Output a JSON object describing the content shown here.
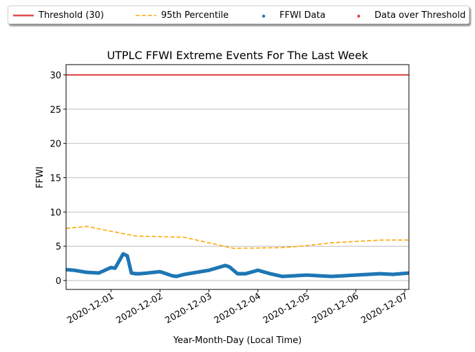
{
  "chart_data": {
    "type": "line",
    "title": "UTPLC FFWI Extreme Events For The Last Week",
    "xlabel": "Year-Month-Day (Local Time)",
    "ylabel": "FFWI",
    "xlim": [
      "2020-11-30T02:00",
      "2020-12-07T02:00"
    ],
    "ylim": [
      -1.3,
      31.5
    ],
    "yticks": [
      0,
      5,
      10,
      15,
      20,
      25,
      30
    ],
    "xticks": [
      "2020-12-01",
      "2020-12-02",
      "2020-12-03",
      "2020-12-04",
      "2020-12-05",
      "2020-12-06",
      "2020-12-07"
    ],
    "grid": "horizontal",
    "legend_position": "top, above plot",
    "legend": [
      "Threshold (30)",
      "95th Percentile",
      "FFWI Data",
      "Data over Threshold"
    ],
    "colors": {
      "threshold": "#e0474c",
      "percentile": "#ffa500",
      "ffwi": "#1f77b4",
      "over": "#e0474c"
    },
    "series": [
      {
        "name": "Threshold (30)",
        "style": "solid-line",
        "x": [
          "2020-11-30T02:00",
          "2020-12-07T02:00"
        ],
        "y": [
          30,
          30
        ]
      },
      {
        "name": "95th Percentile",
        "style": "dashed-line",
        "x": [
          "2020-11-30T02:00",
          "2020-11-30T12:00",
          "2020-12-01T00:00",
          "2020-12-01T12:00",
          "2020-12-02T12:00",
          "2020-12-03T00:00",
          "2020-12-03T12:00",
          "2020-12-04T12:00",
          "2020-12-05T00:00",
          "2020-12-05T12:00",
          "2020-12-06T00:00",
          "2020-12-06T12:00",
          "2020-12-07T02:00"
        ],
        "y": [
          7.6,
          7.9,
          7.2,
          6.5,
          6.3,
          5.5,
          4.7,
          4.8,
          5.1,
          5.5,
          5.7,
          5.9,
          5.9
        ]
      },
      {
        "name": "FFWI Data",
        "style": "scatter",
        "x": [
          "2020-11-30T02:00",
          "2020-11-30T06:00",
          "2020-11-30T12:00",
          "2020-11-30T18:00",
          "2020-12-01T00:00",
          "2020-12-01T02:00",
          "2020-12-01T06:00",
          "2020-12-01T08:00",
          "2020-12-01T10:00",
          "2020-12-01T12:00",
          "2020-12-01T14:00",
          "2020-12-01T18:00",
          "2020-12-02T00:00",
          "2020-12-02T06:00",
          "2020-12-02T08:00",
          "2020-12-02T12:00",
          "2020-12-03T00:00",
          "2020-12-03T08:00",
          "2020-12-03T10:00",
          "2020-12-03T14:00",
          "2020-12-03T18:00",
          "2020-12-04T00:00",
          "2020-12-04T06:00",
          "2020-12-04T12:00",
          "2020-12-05T00:00",
          "2020-12-05T12:00",
          "2020-12-06T00:00",
          "2020-12-06T12:00",
          "2020-12-06T18:00",
          "2020-12-07T02:00"
        ],
        "y": [
          1.6,
          1.5,
          1.2,
          1.1,
          1.9,
          1.8,
          3.9,
          3.6,
          1.1,
          1.0,
          1.0,
          1.1,
          1.3,
          0.7,
          0.6,
          0.9,
          1.5,
          2.2,
          2.0,
          1.0,
          1.0,
          1.5,
          1.0,
          0.6,
          0.8,
          0.6,
          0.8,
          1.0,
          0.9,
          1.1
        ]
      },
      {
        "name": "Data over Threshold",
        "style": "scatter",
        "x": [],
        "y": []
      }
    ]
  }
}
